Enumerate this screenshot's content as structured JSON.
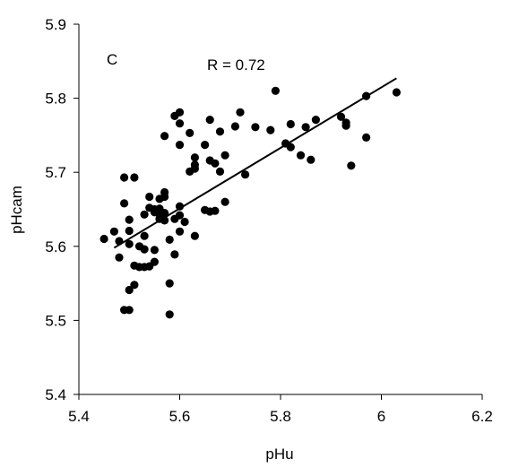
{
  "chart_data": {
    "type": "scatter",
    "panel_label": "C",
    "annotation": "R = 0.72",
    "xlabel": "pHu",
    "ylabel": "pHcam",
    "xlim": [
      5.4,
      6.2
    ],
    "ylim": [
      5.4,
      5.9
    ],
    "x_ticks": [
      "5.4",
      "5.6",
      "5.8",
      "6",
      "6.2"
    ],
    "y_ticks": [
      "5.4",
      "5.5",
      "5.6",
      "5.7",
      "5.8",
      "5.9"
    ],
    "grid": false,
    "legend": "none",
    "marker_color": "#000000",
    "trendline": {
      "x": [
        5.47,
        6.03
      ],
      "y": [
        5.598,
        5.827
      ]
    },
    "points": [
      [
        5.45,
        5.61
      ],
      [
        5.47,
        5.62
      ],
      [
        5.48,
        5.607
      ],
      [
        5.48,
        5.585
      ],
      [
        5.49,
        5.693
      ],
      [
        5.49,
        5.658
      ],
      [
        5.49,
        5.514
      ],
      [
        5.5,
        5.514
      ],
      [
        5.5,
        5.636
      ],
      [
        5.5,
        5.621
      ],
      [
        5.5,
        5.603
      ],
      [
        5.5,
        5.541
      ],
      [
        5.51,
        5.693
      ],
      [
        5.51,
        5.574
      ],
      [
        5.51,
        5.548
      ],
      [
        5.52,
        5.6
      ],
      [
        5.52,
        5.572
      ],
      [
        5.53,
        5.643
      ],
      [
        5.53,
        5.614
      ],
      [
        5.53,
        5.596
      ],
      [
        5.53,
        5.572
      ],
      [
        5.54,
        5.667
      ],
      [
        5.54,
        5.652
      ],
      [
        5.54,
        5.573
      ],
      [
        5.55,
        5.65
      ],
      [
        5.55,
        5.646
      ],
      [
        5.55,
        5.595
      ],
      [
        5.55,
        5.579
      ],
      [
        5.56,
        5.664
      ],
      [
        5.56,
        5.651
      ],
      [
        5.56,
        5.643
      ],
      [
        5.56,
        5.637
      ],
      [
        5.57,
        5.673
      ],
      [
        5.57,
        5.667
      ],
      [
        5.57,
        5.645
      ],
      [
        5.57,
        5.635
      ],
      [
        5.57,
        5.749
      ],
      [
        5.58,
        5.55
      ],
      [
        5.58,
        5.508
      ],
      [
        5.58,
        5.609
      ],
      [
        5.59,
        5.776
      ],
      [
        5.59,
        5.589
      ],
      [
        5.59,
        5.637
      ],
      [
        5.6,
        5.781
      ],
      [
        5.6,
        5.766
      ],
      [
        5.6,
        5.737
      ],
      [
        5.6,
        5.654
      ],
      [
        5.6,
        5.642
      ],
      [
        5.6,
        5.62
      ],
      [
        5.61,
        5.633
      ],
      [
        5.62,
        5.753
      ],
      [
        5.62,
        5.701
      ],
      [
        5.63,
        5.72
      ],
      [
        5.63,
        5.71
      ],
      [
        5.63,
        5.705
      ],
      [
        5.63,
        5.614
      ],
      [
        5.65,
        5.737
      ],
      [
        5.65,
        5.649
      ],
      [
        5.66,
        5.771
      ],
      [
        5.66,
        5.716
      ],
      [
        5.66,
        5.647
      ],
      [
        5.67,
        5.712
      ],
      [
        5.67,
        5.648
      ],
      [
        5.68,
        5.755
      ],
      [
        5.68,
        5.701
      ],
      [
        5.69,
        5.723
      ],
      [
        5.69,
        5.66
      ],
      [
        5.71,
        5.762
      ],
      [
        5.72,
        5.781
      ],
      [
        5.73,
        5.697
      ],
      [
        5.75,
        5.761
      ],
      [
        5.78,
        5.757
      ],
      [
        5.79,
        5.81
      ],
      [
        5.81,
        5.739
      ],
      [
        5.82,
        5.765
      ],
      [
        5.82,
        5.734
      ],
      [
        5.84,
        5.723
      ],
      [
        5.85,
        5.761
      ],
      [
        5.86,
        5.717
      ],
      [
        5.87,
        5.771
      ],
      [
        5.92,
        5.775
      ],
      [
        5.93,
        5.767
      ],
      [
        5.93,
        5.763
      ],
      [
        5.94,
        5.709
      ],
      [
        5.97,
        5.803
      ],
      [
        5.97,
        5.747
      ],
      [
        6.03,
        5.808
      ]
    ]
  }
}
